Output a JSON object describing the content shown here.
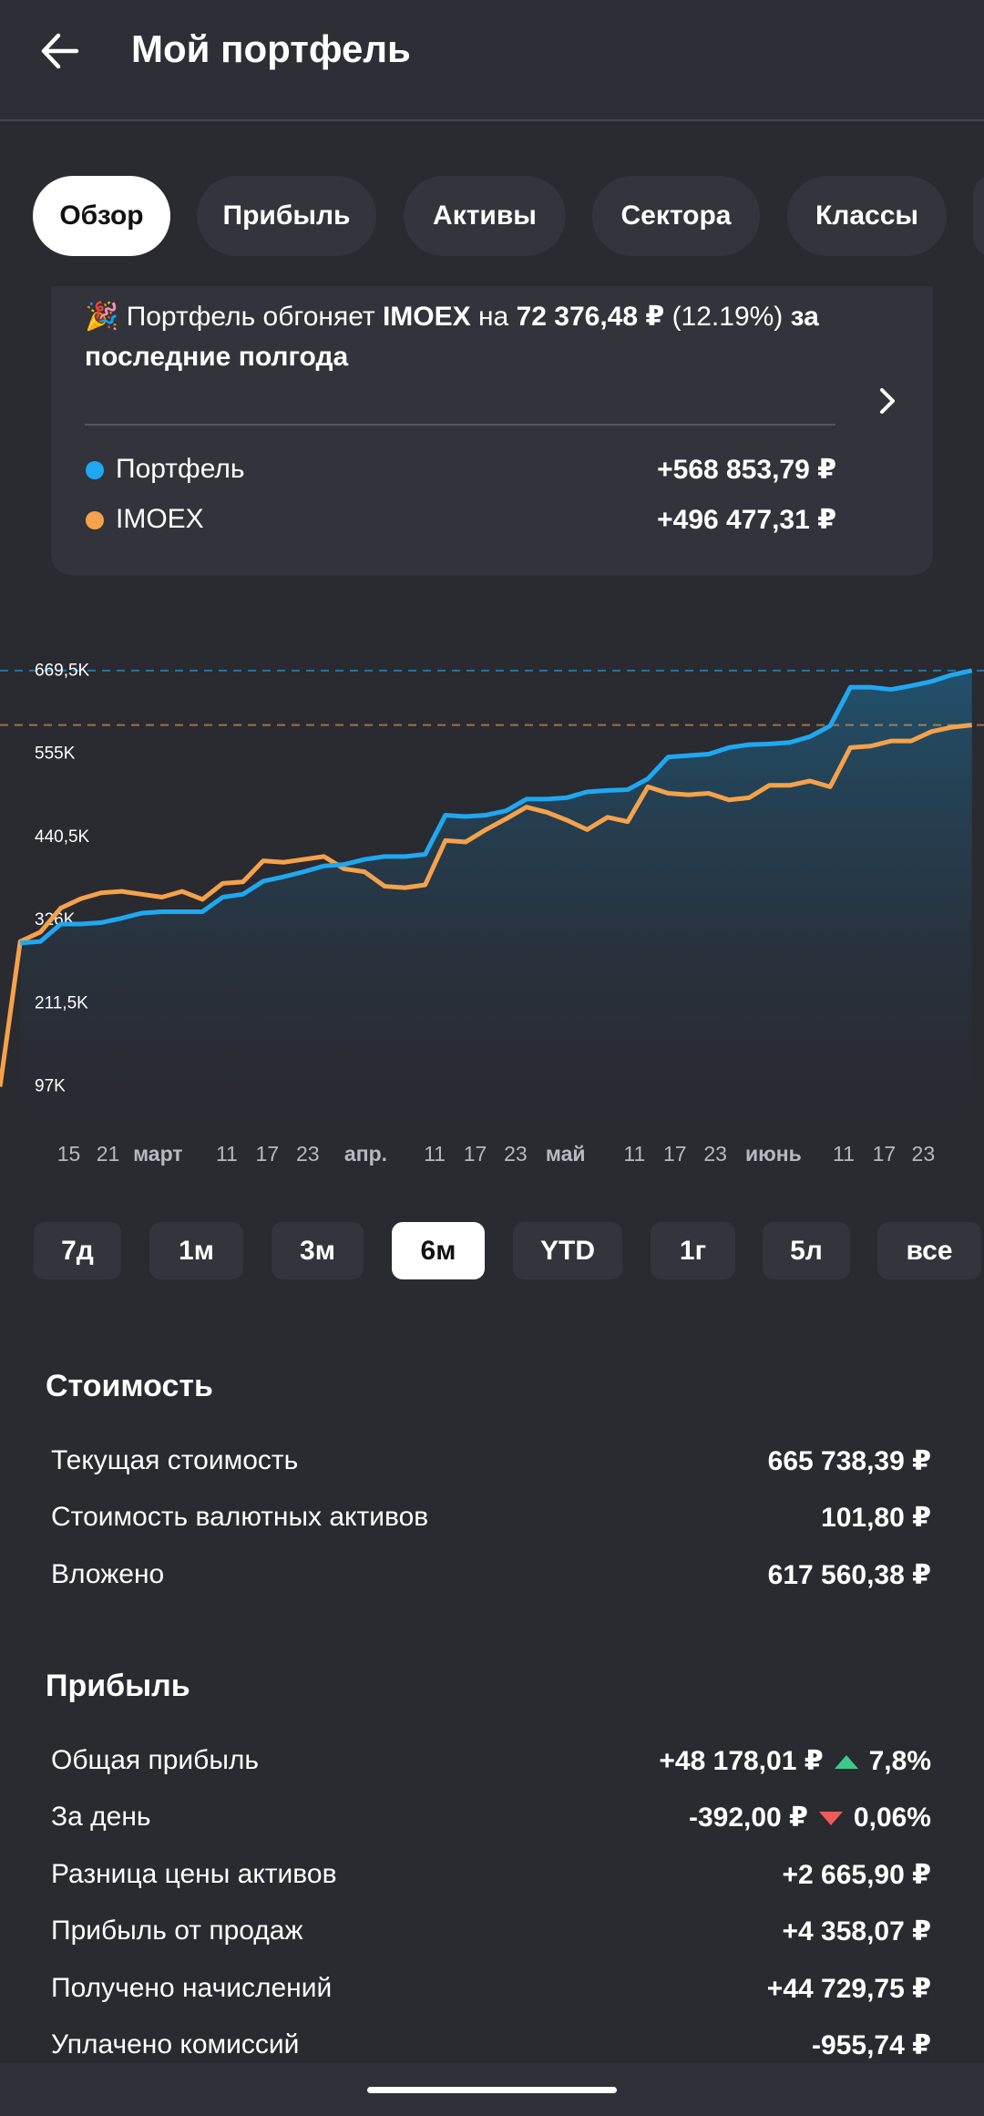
{
  "header": {
    "title": "Мой портфель"
  },
  "tabs": [
    {
      "label": "Обзор",
      "selected": true
    },
    {
      "label": "Прибыль"
    },
    {
      "label": "Активы"
    },
    {
      "label": "Сектора"
    },
    {
      "label": "Классы"
    }
  ],
  "banner": {
    "parts": [
      {
        "text": "🎉 Портфель обгоняет "
      },
      {
        "text": "IMOEX",
        "bold": true
      },
      {
        "text": " на "
      },
      {
        "text": "72 376,48 ₽",
        "bold": true
      },
      {
        "text": " (12.19%) "
      },
      {
        "text": "за последние полгода",
        "bold": true
      }
    ]
  },
  "chart_data": {
    "type": "line",
    "series": [
      {
        "name": "Портфель",
        "color": "#1fa8f2",
        "total": "+568 853,79 ₽",
        "area": true,
        "values": [
          null,
          295000,
          297000,
          321000,
          321000,
          323000,
          329000,
          336000,
          338000,
          338000,
          338000,
          358000,
          362000,
          380000,
          386000,
          393000,
          401000,
          403000,
          410000,
          414000,
          414000,
          417000,
          471000,
          469000,
          471000,
          477000,
          493000,
          493000,
          495000,
          503000,
          505000,
          506000,
          521000,
          551000,
          553000,
          555000,
          564000,
          568000,
          569000,
          571000,
          579000,
          594000,
          647000,
          647000,
          644000,
          649000,
          655000,
          664000,
          670000
        ]
      },
      {
        "name": "IMOEX",
        "color": "#f5a24a",
        "total": "+496 477,31 ₽",
        "values": [
          97000,
          297000,
          310000,
          343000,
          356000,
          364000,
          366000,
          362000,
          358000,
          366000,
          355000,
          377000,
          379000,
          408000,
          406000,
          410000,
          414000,
          397000,
          393000,
          373000,
          371000,
          375000,
          436000,
          434000,
          451000,
          466000,
          482000,
          475000,
          464000,
          451000,
          468000,
          462000,
          510000,
          501000,
          499000,
          501000,
          492000,
          495000,
          512000,
          512000,
          518000,
          510000,
          564000,
          566000,
          573000,
          573000,
          586000,
          592000,
          595000
        ]
      }
    ],
    "ylim": [
      50000,
      720000
    ],
    "yticks": [
      {
        "value": 97000,
        "label": "97K"
      },
      {
        "value": 211500,
        "label": "211,5K"
      },
      {
        "value": 326000,
        "label": "326K"
      },
      {
        "value": 440500,
        "label": "440,5K"
      },
      {
        "value": 555000,
        "label": "555K"
      },
      {
        "value": 669500,
        "label": "669,5K"
      }
    ],
    "xtick_labels": [
      "15",
      "21",
      "март",
      "11",
      "17",
      "23",
      "апр.",
      "11",
      "17",
      "23",
      "май",
      "11",
      "17",
      "23",
      "июнь",
      "11",
      "17",
      "23"
    ],
    "grid": false
  },
  "periods": [
    {
      "label": "7д"
    },
    {
      "label": "1м"
    },
    {
      "label": "3м"
    },
    {
      "label": "6м",
      "selected": true
    },
    {
      "label": "YTD"
    },
    {
      "label": "1г"
    },
    {
      "label": "5л"
    },
    {
      "label": "все"
    }
  ],
  "sections": [
    {
      "title": "Стоимость",
      "rows": [
        {
          "label": "Текущая стоимость",
          "value": "665 738,39 ₽"
        },
        {
          "label": "Стоимость валютных активов",
          "value": "101,80 ₽"
        },
        {
          "label": "Вложено",
          "value": "617 560,38 ₽"
        }
      ]
    },
    {
      "title": "Прибыль",
      "rows": [
        {
          "label": "Общая прибыль",
          "value": "+48 178,01 ₽",
          "change": "7,8%",
          "trend": "up"
        },
        {
          "label": "За день",
          "value": "-392,00 ₽",
          "change": "0,06%",
          "trend": "down"
        },
        {
          "label": "Разница цены активов",
          "value": "+2 665,90 ₽"
        },
        {
          "label": "Прибыль от продаж",
          "value": "+4 358,07 ₽"
        },
        {
          "label": "Получено начислений",
          "value": "+44 729,75 ₽"
        },
        {
          "label": "Уплачено комиссий",
          "value": "-955,74 ₽"
        }
      ]
    }
  ]
}
